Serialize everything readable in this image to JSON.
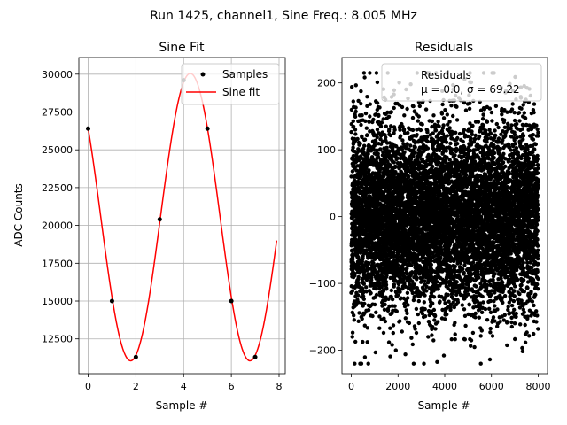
{
  "suptitle": "Run 1425, channel1, Sine Freq.: 8.005 MHz",
  "chart_data": [
    {
      "type": "line",
      "title": "Sine Fit",
      "xlabel": "Sample #",
      "ylabel": "ADC Counts",
      "xlim": [
        -0.39,
        8.26
      ],
      "ylim": [
        10200,
        31100
      ],
      "xticks": [
        0,
        2,
        4,
        6,
        8
      ],
      "yticks": [
        12500,
        15000,
        17500,
        20000,
        22500,
        25000,
        27500,
        30000
      ],
      "xtick_labels": [
        "0",
        "2",
        "4",
        "6",
        "8"
      ],
      "ytick_labels": [
        "12500",
        "15000",
        "17500",
        "20000",
        "22500",
        "25000",
        "27500",
        "30000"
      ],
      "grid": true,
      "legend_position": "top-right",
      "series": [
        {
          "name": "Samples",
          "kind": "scatter",
          "color": "#000000",
          "x": [
            0,
            1,
            2,
            3,
            4,
            5,
            6,
            7
          ],
          "y": [
            26400,
            15000,
            11300,
            20400,
            29600,
            26400,
            15000,
            11300
          ]
        },
        {
          "name": "Sine fit",
          "kind": "line",
          "color": "#ff0000",
          "function": "sine",
          "offset": 20550,
          "amplitude": 9500,
          "period": 5.0,
          "peak_x": 4.28,
          "x_range": [
            0,
            7.9
          ]
        }
      ]
    },
    {
      "type": "scatter",
      "title": "Residuals",
      "xlabel": "Sample #",
      "xlim": [
        -400,
        8400
      ],
      "ylim": [
        -235,
        238
      ],
      "xticks": [
        0,
        2000,
        4000,
        6000,
        8000
      ],
      "yticks": [
        -200,
        -100,
        0,
        100,
        200
      ],
      "xtick_labels": [
        "0",
        "2000",
        "4000",
        "6000",
        "8000"
      ],
      "ytick_labels": [
        "−200",
        "−100",
        "0",
        "100",
        "200"
      ],
      "grid": false,
      "legend_position": "top-right",
      "legend_label": "Residuals",
      "legend_stats": "μ = 0.0, σ = 69.22",
      "series": [
        {
          "name": "Residuals",
          "color": "#000000",
          "n_points": 8000,
          "mean": 0.0,
          "std": 69.22,
          "x_range": [
            0,
            7999
          ],
          "y_range": [
            -220,
            215
          ]
        }
      ]
    }
  ]
}
